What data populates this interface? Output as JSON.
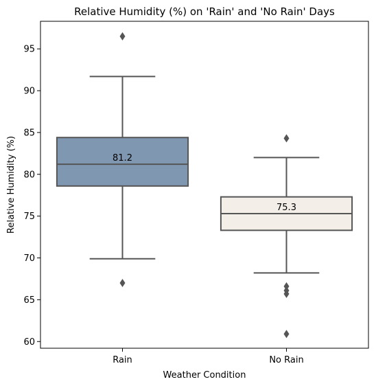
{
  "chart_data": {
    "type": "box",
    "title": "Relative Humidity (%) on 'Rain' and 'No Rain' Days",
    "xlabel": "Weather Condition",
    "ylabel": "Relative Humidity (%)",
    "ylim": [
      59.2,
      98.3
    ],
    "yticks": [
      "60",
      "65",
      "70",
      "75",
      "80",
      "85",
      "90",
      "95"
    ],
    "grid": false,
    "series": [
      {
        "category": "Rain",
        "color": "#7F97B1",
        "whisker_low": 69.9,
        "q1": 78.6,
        "median": 81.2,
        "q3": 84.4,
        "whisker_high": 91.7,
        "outliers": [
          96.5,
          67.0
        ],
        "median_label": "81.2"
      },
      {
        "category": "No Rain",
        "color": "#F3EEE7",
        "whisker_low": 68.2,
        "q1": 73.3,
        "median": 75.3,
        "q3": 77.3,
        "whisker_high": 82.0,
        "outliers": [
          84.3,
          66.6,
          66.1,
          65.7,
          60.9
        ],
        "median_label": "75.3"
      }
    ]
  }
}
